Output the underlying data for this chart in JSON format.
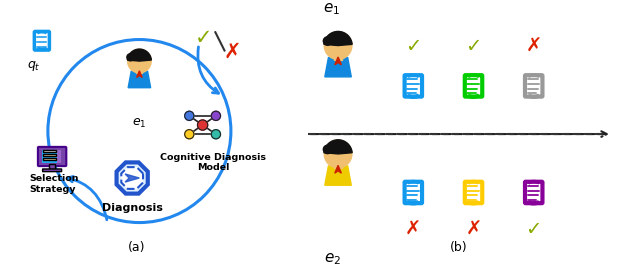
{
  "fig_width": 6.4,
  "fig_height": 2.67,
  "dpi": 100,
  "bg_color": "#ffffff",
  "panel_a_label": "(a)",
  "panel_b_label": "(b)",
  "selection_strategy_text": "Selection\nStrategy",
  "cognitive_model_text": "Cognitive Diagnosis\nModel",
  "diagnosis_text": "Diagnosis",
  "q_t_label": "$q_t$",
  "e1_label_a": "$e_1$",
  "e1_label_b": "$e_1$",
  "e2_label_b": "$e_2$",
  "circle_color": "#2288ee",
  "doc_colors_row1": [
    "#1199ee",
    "#00cc00",
    "#999999"
  ],
  "doc_colors_row2": [
    "#1199ee",
    "#ffcc00",
    "#880099"
  ],
  "check_color": "#88aa00",
  "cross_color": "#dd2200",
  "slash_color": "#333333",
  "dashed_line_color": "#333333",
  "person_skin": "#f0c070",
  "person_hair": "#111111",
  "person1_shirt": "#1188dd",
  "person2_shirt": "#eecc00",
  "tie_color": "#cc2200",
  "neural_node_colors_outer": [
    "#4488ee",
    "#cc66cc",
    "#ffcc22",
    "#44ccaa",
    "#ffcc22"
  ],
  "neural_node_center": "#dd3333",
  "pentagon_color": "#2255cc",
  "pentagon_fill": "#ffffff",
  "doc_left_color": "#1199ee",
  "computer_screen": "#22aaee",
  "computer_frame": "#7744aa"
}
